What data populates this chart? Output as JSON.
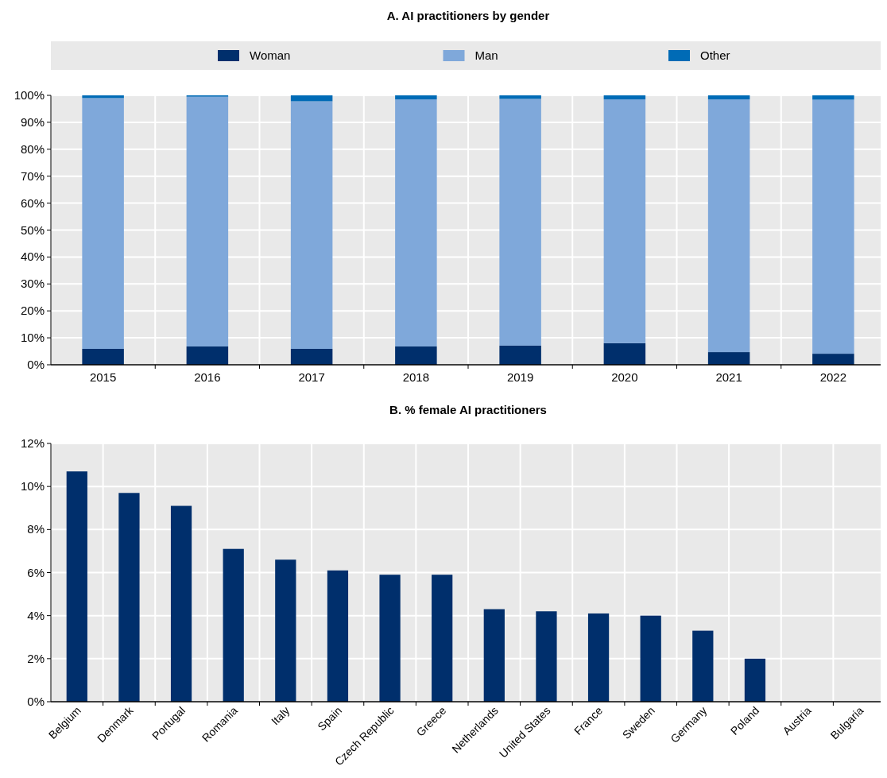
{
  "chart_data": [
    {
      "type": "bar",
      "title": "A. AI practitioners by gender",
      "categories": [
        "2015",
        "2016",
        "2017",
        "2018",
        "2019",
        "2020",
        "2021",
        "2022"
      ],
      "stacked": true,
      "series": [
        {
          "name": "Woman",
          "color": "#002f6c",
          "values": [
            5.9,
            6.8,
            5.9,
            6.8,
            7.1,
            8.0,
            4.7,
            4.1
          ]
        },
        {
          "name": "Man",
          "color": "#7fa8da",
          "values": [
            93.1,
            92.7,
            91.9,
            91.7,
            91.6,
            90.5,
            93.8,
            94.3
          ]
        },
        {
          "name": "Other",
          "color": "#006bb6",
          "values": [
            1.0,
            0.5,
            2.2,
            1.5,
            1.3,
            1.5,
            1.5,
            1.6
          ]
        }
      ],
      "ylim": [
        0,
        100
      ],
      "yticks": [
        {
          "value": 0,
          "label": "0%"
        },
        {
          "value": 10,
          "label": "10%"
        },
        {
          "value": 20,
          "label": "20%"
        },
        {
          "value": 30,
          "label": "30%"
        },
        {
          "value": 40,
          "label": "40%"
        },
        {
          "value": 50,
          "label": "50%"
        },
        {
          "value": 60,
          "label": "60%"
        },
        {
          "value": 70,
          "label": "70%"
        },
        {
          "value": 80,
          "label": "80%"
        },
        {
          "value": 90,
          "label": "90%"
        },
        {
          "value": 100,
          "label": "100%"
        }
      ],
      "grid": true,
      "legend": "top"
    },
    {
      "type": "bar",
      "title": "B. % female AI practitioners",
      "categories": [
        "Belgium",
        "Denmark",
        "Portugal",
        "Romania",
        "Italy",
        "Spain",
        "Czech Republic",
        "Greece",
        "Netherlands",
        "United States",
        "France",
        "Sweden",
        "Germany",
        "Poland",
        "Austria",
        "Bulgaria"
      ],
      "series": [
        {
          "color": "#002f6c",
          "values": [
            10.7,
            9.7,
            9.1,
            7.1,
            6.6,
            6.1,
            5.9,
            5.9,
            4.3,
            4.2,
            4.1,
            4.0,
            3.3,
            2.0,
            0,
            0
          ]
        }
      ],
      "ylim": [
        0,
        12
      ],
      "yticks": [
        {
          "value": 0,
          "label": "0%"
        },
        {
          "value": 2,
          "label": "2%"
        },
        {
          "value": 4,
          "label": "4%"
        },
        {
          "value": 6,
          "label": "6%"
        },
        {
          "value": 8,
          "label": "8%"
        },
        {
          "value": 10,
          "label": "10%"
        },
        {
          "value": 12,
          "label": "12%"
        }
      ],
      "grid": true
    }
  ]
}
